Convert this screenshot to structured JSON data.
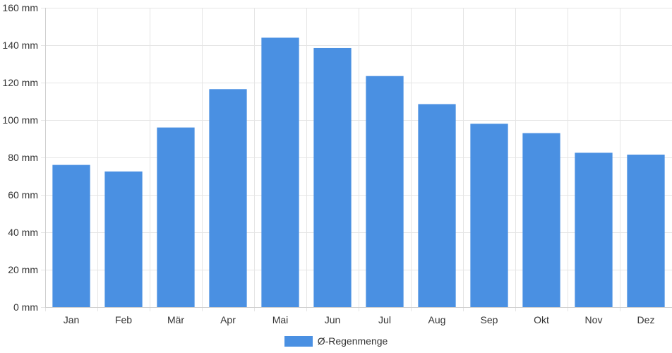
{
  "chart_data": {
    "type": "bar",
    "title": "",
    "xlabel": "",
    "ylabel": "",
    "categories": [
      "Jan",
      "Feb",
      "Mär",
      "Apr",
      "Mai",
      "Jun",
      "Jul",
      "Aug",
      "Sep",
      "Okt",
      "Nov",
      "Dez"
    ],
    "series": [
      {
        "name": "Ø-Regenmenge",
        "color": "#4a90e2",
        "values": [
          76,
          72.5,
          96,
          116.5,
          144,
          138.5,
          123.5,
          108.5,
          98,
          93,
          82.5,
          81.5
        ]
      }
    ],
    "ylim": [
      0,
      160
    ],
    "yticks": [
      0,
      20,
      40,
      60,
      80,
      100,
      120,
      140,
      160
    ],
    "ytick_labels": [
      "0 mm",
      "20 mm",
      "40 mm",
      "60 mm",
      "80 mm",
      "100 mm",
      "120 mm",
      "140 mm",
      "160 mm"
    ],
    "grid": true,
    "legend_position": "bottom-center"
  }
}
